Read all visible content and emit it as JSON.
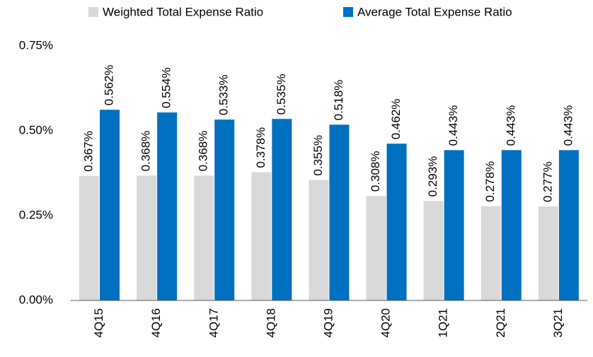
{
  "chart_data": {
    "type": "bar",
    "categories": [
      "4Q15",
      "4Q16",
      "4Q17",
      "4Q18",
      "4Q19",
      "4Q20",
      "1Q21",
      "2Q21",
      "3Q21"
    ],
    "series": [
      {
        "name": "Weighted Total Expense Ratio",
        "color": "#d9d9d9",
        "values": [
          0.367,
          0.368,
          0.368,
          0.378,
          0.355,
          0.308,
          0.293,
          0.278,
          0.277
        ],
        "value_labels": [
          "0.367%",
          "0.368%",
          "0.368%",
          "0.378%",
          "0.355%",
          "0.308%",
          "0.293%",
          "0.278%",
          "0.277%"
        ]
      },
      {
        "name": "Average Total Expense Ratio",
        "color": "#0070c0",
        "values": [
          0.562,
          0.554,
          0.533,
          0.535,
          0.518,
          0.462,
          0.443,
          0.443,
          0.443
        ],
        "value_labels": [
          "0.562%",
          "0.554%",
          "0.533%",
          "0.535%",
          "0.518%",
          "0.462%",
          "0.443%",
          "0.443%",
          "0.443%"
        ]
      }
    ],
    "ylim": [
      0,
      0.75
    ],
    "yticks": [
      {
        "value": 0,
        "label": "0.00%"
      },
      {
        "value": 0.25,
        "label": "0.25%"
      },
      {
        "value": 0.5,
        "label": "0.50%"
      },
      {
        "value": 0.75,
        "label": "0.75%"
      }
    ],
    "legend": "top"
  }
}
